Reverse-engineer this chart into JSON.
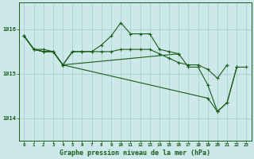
{
  "background_color": "#cce8e8",
  "grid_color": "#a8d0d0",
  "line_color": "#1a5c1a",
  "title": "Graphe pression niveau de la mer (hPa)",
  "ylabel_ticks": [
    1014,
    1015,
    1016
  ],
  "xlim": [
    -0.5,
    23.5
  ],
  "ylim": [
    1013.5,
    1016.6
  ],
  "series": [
    {
      "x": [
        0,
        1,
        2,
        3,
        4,
        5,
        6,
        7,
        8,
        9,
        10,
        11,
        12,
        13,
        14,
        15,
        16,
        17,
        18,
        19,
        20,
        21
      ],
      "y": [
        1015.85,
        1015.55,
        1015.55,
        1015.5,
        1015.2,
        1015.5,
        1015.5,
        1015.5,
        1015.5,
        1015.5,
        1015.55,
        1015.55,
        1015.55,
        1015.55,
        1015.45,
        1015.35,
        1015.25,
        1015.2,
        1015.2,
        1015.1,
        1014.9,
        1015.2
      ]
    },
    {
      "x": [
        0,
        1,
        2,
        3,
        4,
        5,
        6,
        7,
        8,
        9,
        10,
        11,
        12,
        13,
        14,
        15,
        16
      ],
      "y": [
        1015.85,
        1015.55,
        1015.5,
        1015.5,
        1015.2,
        1015.5,
        1015.5,
        1015.5,
        1015.65,
        1015.85,
        1016.15,
        1015.9,
        1015.9,
        1015.9,
        1015.55,
        1015.5,
        1015.45
      ]
    },
    {
      "x": [
        0,
        1,
        2,
        3,
        4,
        16,
        17,
        18,
        19,
        20,
        21,
        22
      ],
      "y": [
        1015.85,
        1015.55,
        1015.5,
        1015.5,
        1015.2,
        1015.45,
        1015.15,
        1015.15,
        1014.75,
        1014.15,
        1014.35,
        1015.15
      ]
    },
    {
      "x": [
        0,
        1,
        2,
        3,
        4,
        19,
        20,
        21,
        22,
        23
      ],
      "y": [
        1015.85,
        1015.55,
        1015.5,
        1015.5,
        1015.2,
        1014.45,
        1014.15,
        1014.35,
        1015.15,
        1015.15
      ]
    }
  ]
}
